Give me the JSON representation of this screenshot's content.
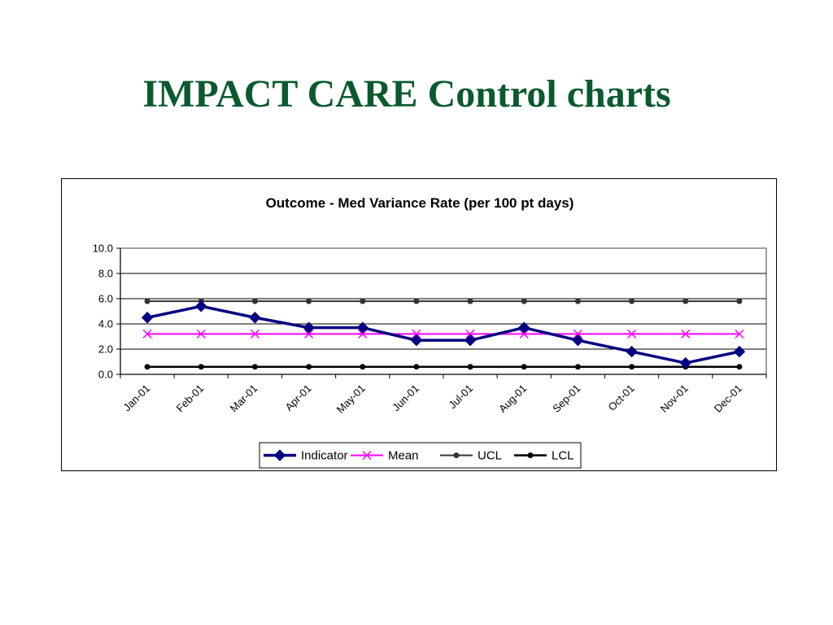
{
  "slide": {
    "title": "IMPACT CARE Control charts"
  },
  "chart_data": {
    "type": "line",
    "title": "Outcome - Med Variance Rate (per 100 pt days)",
    "xlabel": "",
    "ylabel": "",
    "categories": [
      "Jan-01",
      "Feb-01",
      "Mar-01",
      "Apr-01",
      "May-01",
      "Jun-01",
      "Jul-01",
      "Aug-01",
      "Sep-01",
      "Oct-01",
      "Nov-01",
      "Dec-01"
    ],
    "ylim": [
      0,
      10
    ],
    "yticks": [
      "0.0",
      "2.0",
      "4.0",
      "6.0",
      "8.0",
      "10.0"
    ],
    "grid": true,
    "legend_position": "bottom",
    "series": [
      {
        "name": "Indicator",
        "values": [
          4.5,
          5.4,
          4.5,
          3.7,
          3.7,
          2.7,
          2.7,
          3.7,
          2.7,
          1.8,
          0.9,
          1.8
        ],
        "color": "#000080",
        "marker": "diamond"
      },
      {
        "name": "Mean",
        "values": [
          3.2,
          3.2,
          3.2,
          3.2,
          3.2,
          3.2,
          3.2,
          3.2,
          3.2,
          3.2,
          3.2,
          3.2
        ],
        "color": "#ff00ff",
        "marker": "x"
      },
      {
        "name": "UCL",
        "values": [
          5.8,
          5.8,
          5.8,
          5.8,
          5.8,
          5.8,
          5.8,
          5.8,
          5.8,
          5.8,
          5.8,
          5.8
        ],
        "color": "#333333",
        "marker": "circle"
      },
      {
        "name": "LCL",
        "values": [
          0.6,
          0.6,
          0.6,
          0.6,
          0.6,
          0.6,
          0.6,
          0.6,
          0.6,
          0.6,
          0.6,
          0.6
        ],
        "color": "#000000",
        "marker": "circle"
      }
    ]
  }
}
